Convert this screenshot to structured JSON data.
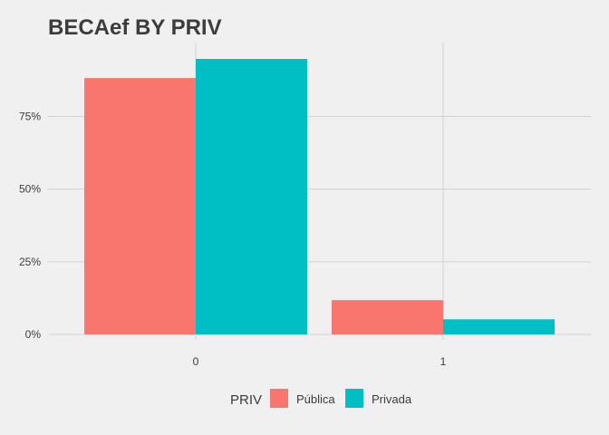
{
  "chart_data": {
    "type": "bar",
    "title": "BECAef BY PRIV",
    "xlabel": "",
    "ylabel": "",
    "categories": [
      "0",
      "1"
    ],
    "series": [
      {
        "name": "Pública",
        "color": "#F8766D",
        "values": [
          0.882,
          0.118
        ]
      },
      {
        "name": "Privada",
        "color": "#00BFC4",
        "values": [
          0.948,
          0.052
        ]
      }
    ],
    "ylim": [
      0,
      0.948
    ],
    "yticks": [
      {
        "value": 0,
        "label": "0%"
      },
      {
        "value": 0.25,
        "label": "25%"
      },
      {
        "value": 0.5,
        "label": "50%"
      },
      {
        "value": 0.75,
        "label": "75%"
      }
    ],
    "grid": true,
    "legend": {
      "title": "PRIV",
      "position": "bottom"
    }
  }
}
